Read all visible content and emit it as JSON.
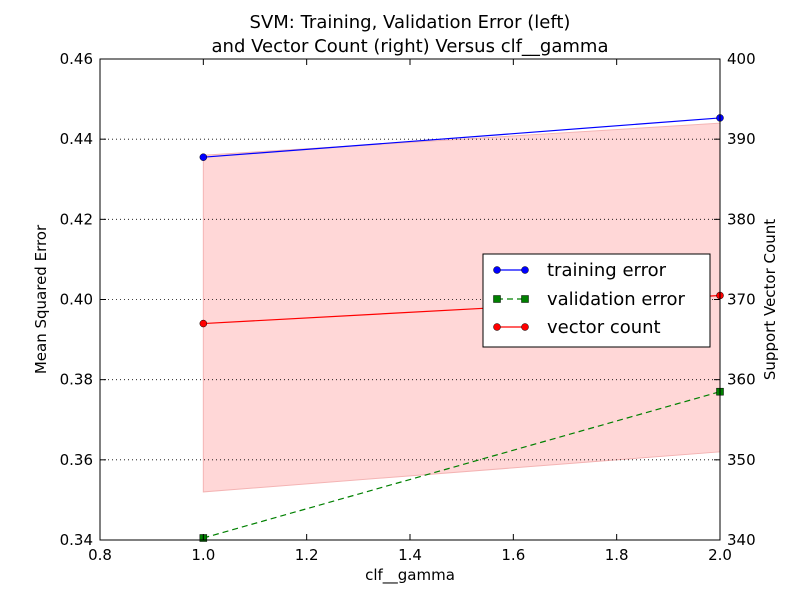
{
  "chart_data": {
    "type": "line",
    "title_line1": "SVM: Training, Validation Error (left)",
    "title_line2": "and Vector Count (right) Versus clf__gamma",
    "xlabel": "clf__gamma",
    "ylabel_left": "Mean Squared Error",
    "ylabel_right": "Support Vector Count",
    "xlim": [
      0.8,
      2.0
    ],
    "ylim_left": [
      0.34,
      0.46
    ],
    "ylim_right": [
      340,
      400
    ],
    "x_ticks": [
      "0.8",
      "1.0",
      "1.2",
      "1.4",
      "1.6",
      "1.8",
      "2.0"
    ],
    "y_left_ticks": [
      "0.34",
      "0.36",
      "0.38",
      "0.40",
      "0.42",
      "0.44",
      "0.46"
    ],
    "y_right_ticks": [
      "340",
      "350",
      "360",
      "370",
      "380",
      "390",
      "400"
    ],
    "grid": "horizontal dotted",
    "legend_position": "center-right",
    "x": [
      1.0,
      2.0
    ],
    "series": [
      {
        "name": "training error",
        "axis": "left",
        "values": [
          0.4355,
          0.4453
        ],
        "color": "#0000ff",
        "marker": "circle",
        "linestyle": "solid"
      },
      {
        "name": "validation error",
        "axis": "left",
        "values": [
          0.3405,
          0.377
        ],
        "color": "#008000",
        "marker": "square",
        "linestyle": "dashed"
      },
      {
        "name": "vector count",
        "axis": "right",
        "values": [
          367.0,
          370.5
        ],
        "color": "#ff0000",
        "marker": "circle",
        "linestyle": "solid",
        "band_lower": [
          346.0,
          351.0
        ],
        "band_upper": [
          388.0,
          392.0
        ],
        "band_color": "#ffd7d7"
      }
    ]
  }
}
